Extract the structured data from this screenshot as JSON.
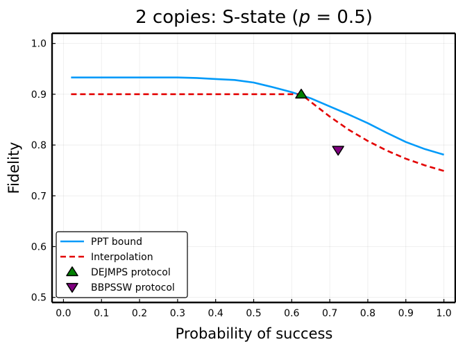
{
  "chart_data": {
    "type": "line",
    "title": {
      "prefix": "2 copies: S-state (",
      "var": "p",
      "suffix": " = 0.5)"
    },
    "xlabel": "Probability of success",
    "ylabel": "Fidelity",
    "xlim": [
      -0.03,
      1.03
    ],
    "ylim": [
      0.49,
      1.02
    ],
    "xticks": [
      0.0,
      0.1,
      0.2,
      0.3,
      0.4,
      0.5,
      0.6,
      0.7,
      0.8,
      0.9,
      1.0
    ],
    "xtick_labels": [
      "0.0",
      "0.1",
      "0.2",
      "0.3",
      "0.4",
      "0.5",
      "0.6",
      "0.7",
      "0.8",
      "0.9",
      "1.0"
    ],
    "yticks": [
      0.5,
      0.6,
      0.7,
      0.8,
      0.9,
      1.0
    ],
    "ytick_labels": [
      "0.5",
      "0.6",
      "0.7",
      "0.8",
      "0.9",
      "1.0"
    ],
    "grid": true,
    "legend_position": "bottom-left",
    "series": [
      {
        "name": "PPT bound",
        "kind": "line",
        "color": "#009af9",
        "dash": "solid",
        "x": [
          0.02,
          0.1,
          0.2,
          0.3,
          0.35,
          0.4,
          0.45,
          0.5,
          0.55,
          0.6,
          0.625,
          0.65,
          0.7,
          0.75,
          0.8,
          0.85,
          0.9,
          0.95,
          1.0
        ],
        "y": [
          0.933,
          0.933,
          0.933,
          0.933,
          0.932,
          0.93,
          0.928,
          0.923,
          0.914,
          0.904,
          0.898,
          0.892,
          0.876,
          0.86,
          0.843,
          0.824,
          0.806,
          0.792,
          0.781
        ]
      },
      {
        "name": "Interpolation",
        "kind": "line",
        "color": "#e30000",
        "dash": "dashed",
        "x": [
          0.02,
          0.1,
          0.2,
          0.3,
          0.4,
          0.5,
          0.6,
          0.625,
          0.65,
          0.7,
          0.75,
          0.8,
          0.85,
          0.9,
          0.95,
          1.0
        ],
        "y": [
          0.9,
          0.9,
          0.9,
          0.9,
          0.9,
          0.9,
          0.9,
          0.9,
          0.885,
          0.856,
          0.83,
          0.808,
          0.789,
          0.773,
          0.76,
          0.749
        ]
      },
      {
        "name": "DEJMPS protocol",
        "kind": "scatter",
        "marker": "triangle-up",
        "color": "#008000",
        "x": [
          0.625
        ],
        "y": [
          0.9
        ]
      },
      {
        "name": "BBPSSW protocol",
        "kind": "scatter",
        "marker": "triangle-down",
        "color": "#800080",
        "x": [
          0.722
        ],
        "y": [
          0.79
        ]
      }
    ]
  }
}
